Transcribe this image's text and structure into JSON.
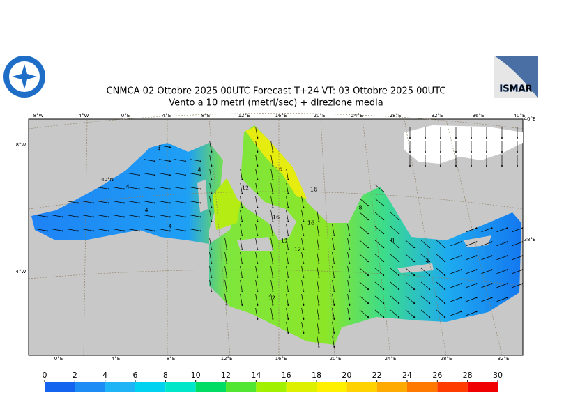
{
  "header": {
    "title": "CNMCA 02  Ottobre  2025 00UTC Forecast T+24 VT: 03  Ottobre  2025 00UTC",
    "subtitle": "Vento a 10 metri (metri/sec) + direzione media",
    "logo_right": "ISMAR"
  },
  "map": {
    "top_labels": [
      "8°W",
      "4°W",
      "0°E",
      "4°E",
      "8°E",
      "12°E",
      "16°E",
      "20°E",
      "24°E",
      "28°E",
      "32°E",
      "36°E",
      "40°E"
    ],
    "bottom_labels": [
      "0°E",
      "4°E",
      "8°E",
      "12°E",
      "16°E",
      "20°E",
      "24°E",
      "28°E",
      "32°E"
    ],
    "left_labels": [
      "8°W",
      "40°N",
      "4°W"
    ],
    "right_labels": [
      "40°E",
      "38°E"
    ],
    "contour_labels": [
      "4",
      "4",
      "4",
      "4",
      "4",
      "12",
      "16",
      "16",
      "16",
      "16",
      "12",
      "12",
      "8",
      "8",
      "4",
      "12"
    ]
  },
  "colorbar": {
    "ticks": [
      0,
      2,
      4,
      6,
      8,
      10,
      12,
      14,
      16,
      18,
      20,
      22,
      24,
      26,
      28,
      30
    ],
    "colors": [
      "#1464f0",
      "#1e8cf5",
      "#1eb4f5",
      "#00d2f0",
      "#00e6c8",
      "#00dc64",
      "#50e632",
      "#a0f000",
      "#dcf000",
      "#fff000",
      "#ffd200",
      "#ffaa00",
      "#ff7800",
      "#ff3c00",
      "#f00000",
      "#ff00a0"
    ]
  }
}
